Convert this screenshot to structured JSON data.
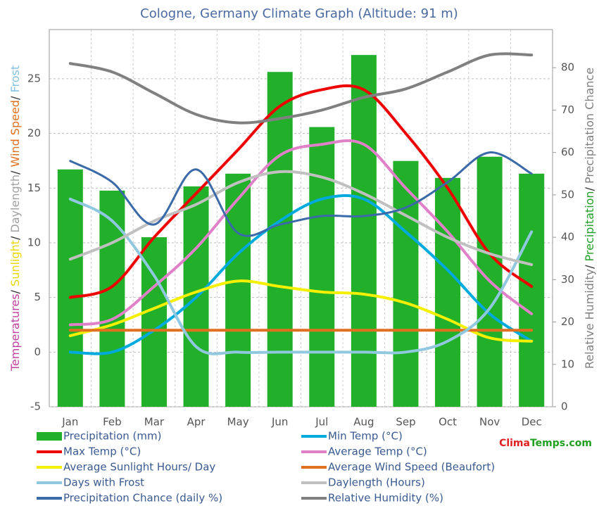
{
  "chart_data": {
    "type": "combo",
    "title": "Cologne, Germany Climate Graph (Altitude: 91 m)",
    "y_label_parts": [
      {
        "text": "Temperatures",
        "color": "#c040a0"
      },
      {
        "text": "/ ",
        "color": "#333333"
      },
      {
        "text": "Sunlight",
        "color": "#e8d800"
      },
      {
        "text": "/ ",
        "color": "#333333"
      },
      {
        "text": "Daylength",
        "color": "#a0a0a0"
      },
      {
        "text": "/ ",
        "color": "#333333"
      },
      {
        "text": "Wind Speed",
        "color": "#e07020"
      },
      {
        "text": "/ ",
        "color": "#333333"
      },
      {
        "text": "Frost",
        "color": "#80c0e0"
      }
    ],
    "y2_label_parts": [
      {
        "text": "Relative Humidity",
        "color": "#808080"
      },
      {
        "text": "/ ",
        "color": "#333333"
      },
      {
        "text": "Precipitation",
        "color": "#22a02a"
      },
      {
        "text": "/ ",
        "color": "#333333"
      },
      {
        "text": "Precipitation Chance",
        "color": "#808080"
      }
    ],
    "categories": [
      "Jan",
      "Feb",
      "Mar",
      "Apr",
      "May",
      "Jun",
      "Jul",
      "Aug",
      "Sep",
      "Oct",
      "Nov",
      "Dec"
    ],
    "ylim": [
      -5,
      29.5
    ],
    "yticks": [
      -5,
      0,
      5,
      10,
      15,
      20,
      25
    ],
    "y2lim": [
      0,
      89
    ],
    "y2ticks": [
      0,
      10,
      20,
      30,
      40,
      50,
      60,
      70,
      80
    ],
    "grid": true,
    "series": [
      {
        "name": "Precipitation (mm)",
        "kind": "bar",
        "axis": "y2",
        "color": "#22b02a",
        "values": [
          56,
          51,
          40,
          52,
          55,
          79,
          66,
          83,
          58,
          54,
          59,
          55
        ]
      },
      {
        "name": "Min Temp (°C)",
        "kind": "line",
        "axis": "y",
        "color": "#00aadd",
        "values": [
          0,
          0,
          2,
          5,
          9,
          12,
          14,
          14,
          11,
          7.5,
          3.5,
          1
        ]
      },
      {
        "name": "Max Temp (°C)",
        "kind": "line",
        "axis": "y",
        "color": "#ee0000",
        "values": [
          5,
          6,
          10.5,
          14.5,
          18.5,
          22.5,
          24,
          24,
          20,
          15,
          9,
          6
        ]
      },
      {
        "name": "Average Temp (°C)",
        "kind": "line",
        "axis": "y",
        "color": "#e080c8",
        "values": [
          2.5,
          3,
          6,
          9.5,
          14,
          18,
          19,
          19,
          15,
          11,
          6.5,
          3.5
        ]
      },
      {
        "name": "Average Sunlight Hours/ Day",
        "kind": "line",
        "axis": "y",
        "color": "#f5f000",
        "values": [
          1.5,
          2.5,
          4,
          5.5,
          6.5,
          6,
          5.5,
          5.3,
          4.5,
          3,
          1.3,
          1
        ]
      },
      {
        "name": "Average Wind Speed (Beaufort)",
        "kind": "line",
        "axis": "y",
        "color": "#e07020",
        "values": [
          2,
          2,
          2,
          2,
          2,
          2,
          2,
          2,
          2,
          2,
          2,
          2
        ]
      },
      {
        "name": "Days with Frost",
        "kind": "line",
        "axis": "y",
        "color": "#90c8e0",
        "values": [
          14,
          12,
          7,
          0.5,
          0,
          0,
          0,
          0,
          0,
          1,
          4,
          11
        ]
      },
      {
        "name": "Daylength (Hours)",
        "kind": "line",
        "axis": "y",
        "color": "#c0c0c0",
        "values": [
          8.5,
          10,
          12,
          13.5,
          15.5,
          16.5,
          16,
          14.5,
          12.5,
          10.5,
          9,
          8
        ]
      },
      {
        "name": "Precipitation Chance (daily %)",
        "kind": "line",
        "axis": "y2",
        "color": "#3a6aa8",
        "values": [
          58,
          53,
          43,
          56,
          41,
          43,
          45,
          45,
          47,
          53,
          60,
          55
        ]
      },
      {
        "name": "Relative Humidity (%)",
        "kind": "line",
        "axis": "y2",
        "color": "#808080",
        "values": [
          81,
          79,
          74,
          69,
          67,
          68,
          70,
          73,
          75,
          79,
          83,
          83
        ]
      }
    ],
    "watermark_parts": [
      {
        "text": "Clima",
        "color": "#e02020"
      },
      {
        "text": "Temps.com",
        "color": "#20a020"
      }
    ]
  }
}
